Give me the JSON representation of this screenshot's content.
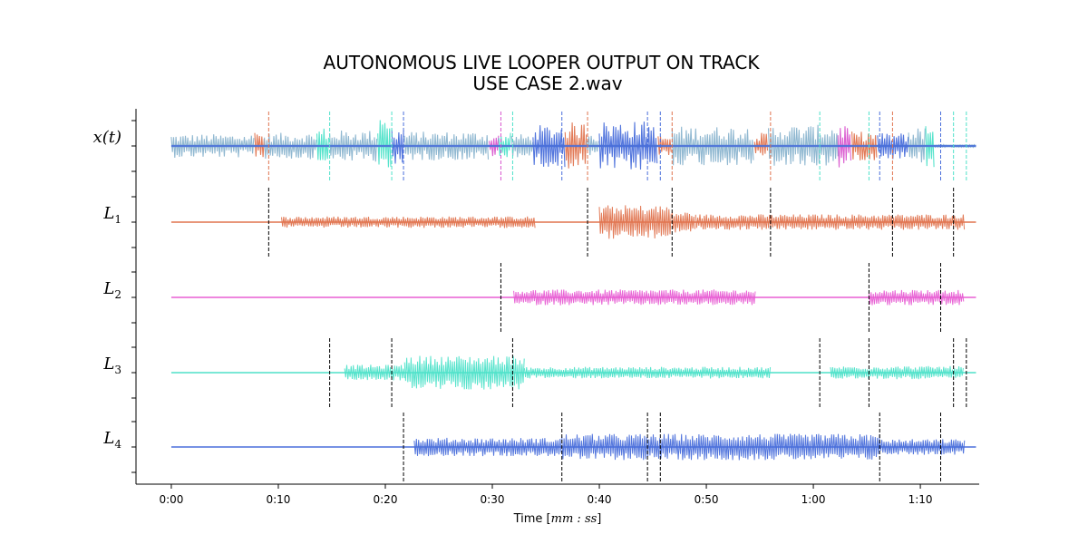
{
  "chart_data": {
    "type": "line",
    "title_line1": "AUTONOMOUS LIVE LOOPER OUTPUT ON TRACK",
    "title_line2": "USE CASE 2.wav",
    "xlabel_prefix": "Time [",
    "xlabel_math": "mm : ss",
    "xlabel_suffix": "]",
    "xlim": [
      -3.3,
      75.5
    ],
    "duration": 75.2,
    "x_ticks": [
      {
        "value": 0,
        "label": "0:00"
      },
      {
        "value": 10,
        "label": "0:10"
      },
      {
        "value": 20,
        "label": "0:20"
      },
      {
        "value": 30,
        "label": "0:30"
      },
      {
        "value": 40,
        "label": "0:40"
      },
      {
        "value": 50,
        "label": "0:50"
      },
      {
        "value": 60,
        "label": "1:00"
      },
      {
        "value": 70,
        "label": "1:10"
      }
    ],
    "tracks": [
      {
        "label": "x(t)",
        "label_main": "x",
        "label_sub": "",
        "label_suffix": "(t)",
        "color": "#8ab4cf",
        "kind": "input",
        "segments": [
          {
            "start": 0.0,
            "end": 7.8,
            "amp": 0.45,
            "color": "#8ab4cf"
          },
          {
            "start": 7.8,
            "end": 8.7,
            "amp": 0.55,
            "color": "#e0744f"
          },
          {
            "start": 8.7,
            "end": 13.6,
            "amp": 0.5,
            "color": "#8ab4cf"
          },
          {
            "start": 13.6,
            "end": 14.8,
            "amp": 0.7,
            "color": "#4ee1c9"
          },
          {
            "start": 14.8,
            "end": 19.3,
            "amp": 0.6,
            "color": "#8ab4cf"
          },
          {
            "start": 19.3,
            "end": 20.6,
            "amp": 1.0,
            "color": "#4ee1c9"
          },
          {
            "start": 20.6,
            "end": 21.8,
            "amp": 0.8,
            "color": "#4a6fdb"
          },
          {
            "start": 21.8,
            "end": 29.7,
            "amp": 0.55,
            "color": "#8ab4cf"
          },
          {
            "start": 29.7,
            "end": 30.6,
            "amp": 0.45,
            "color": "#d957cf"
          },
          {
            "start": 30.6,
            "end": 31.8,
            "amp": 0.5,
            "color": "#4ee1c9"
          },
          {
            "start": 31.8,
            "end": 33.8,
            "amp": 0.45,
            "color": "#8ab4cf"
          },
          {
            "start": 33.8,
            "end": 36.8,
            "amp": 0.8,
            "color": "#4a6fdb"
          },
          {
            "start": 36.8,
            "end": 38.8,
            "amp": 0.9,
            "color": "#e0744f"
          },
          {
            "start": 38.8,
            "end": 40.0,
            "amp": 0.5,
            "color": "#8ab4cf"
          },
          {
            "start": 40.0,
            "end": 45.5,
            "amp": 0.95,
            "color": "#4a6fdb"
          },
          {
            "start": 45.5,
            "end": 46.8,
            "amp": 0.4,
            "color": "#e0744f"
          },
          {
            "start": 46.8,
            "end": 54.5,
            "amp": 0.75,
            "color": "#8ab4cf"
          },
          {
            "start": 54.5,
            "end": 55.8,
            "amp": 0.5,
            "color": "#e0744f"
          },
          {
            "start": 55.8,
            "end": 62.3,
            "amp": 0.8,
            "color": "#8ab4cf"
          },
          {
            "start": 62.3,
            "end": 63.6,
            "amp": 0.85,
            "color": "#d957cf"
          },
          {
            "start": 63.6,
            "end": 66.0,
            "amp": 0.55,
            "color": "#e0744f"
          },
          {
            "start": 66.0,
            "end": 68.9,
            "amp": 0.5,
            "color": "#4a6fdb"
          },
          {
            "start": 68.9,
            "end": 70.5,
            "amp": 0.7,
            "color": "#8ab4cf"
          },
          {
            "start": 70.5,
            "end": 71.3,
            "amp": 0.9,
            "color": "#4ee1c9"
          },
          {
            "start": 71.3,
            "end": 75.2,
            "amp": 0.05,
            "color": "#8ab4cf"
          }
        ],
        "markers": [
          {
            "t": 9.1,
            "color": "#e0744f"
          },
          {
            "t": 14.8,
            "color": "#4ee1c9"
          },
          {
            "t": 20.6,
            "color": "#4ee1c9"
          },
          {
            "t": 21.7,
            "color": "#4a6fdb"
          },
          {
            "t": 30.8,
            "color": "#d957cf"
          },
          {
            "t": 31.9,
            "color": "#4ee1c9"
          },
          {
            "t": 36.5,
            "color": "#4a6fdb"
          },
          {
            "t": 38.9,
            "color": "#e0744f"
          },
          {
            "t": 44.5,
            "color": "#4a6fdb"
          },
          {
            "t": 45.7,
            "color": "#4a6fdb"
          },
          {
            "t": 46.8,
            "color": "#e0744f"
          },
          {
            "t": 56.0,
            "color": "#e0744f"
          },
          {
            "t": 60.6,
            "color": "#4ee1c9"
          },
          {
            "t": 65.2,
            "color": "#4ee1c9"
          },
          {
            "t": 66.2,
            "color": "#4a6fdb"
          },
          {
            "t": 67.4,
            "color": "#e0744f"
          },
          {
            "t": 71.9,
            "color": "#4a6fdb"
          },
          {
            "t": 73.1,
            "color": "#4ee1c9"
          },
          {
            "t": 74.3,
            "color": "#4ee1c9"
          }
        ]
      },
      {
        "label": "L1",
        "label_main": "L",
        "label_sub": "1",
        "label_suffix": "",
        "color": "#e0744f",
        "kind": "loop",
        "segments": [
          {
            "start": 10.3,
            "end": 34.0,
            "amp": 0.22
          },
          {
            "start": 40.0,
            "end": 46.8,
            "amp": 0.65
          },
          {
            "start": 46.8,
            "end": 49.0,
            "amp": 0.4
          },
          {
            "start": 49.0,
            "end": 74.2,
            "amp": 0.3
          }
        ],
        "markers": [
          9.1,
          38.9,
          46.8,
          56.0,
          67.4,
          73.1
        ]
      },
      {
        "label": "L2",
        "label_main": "L",
        "label_sub": "2",
        "label_suffix": "",
        "color": "#e85fd4",
        "kind": "loop",
        "segments": [
          {
            "start": 32.0,
            "end": 54.6,
            "amp": 0.3
          },
          {
            "start": 65.2,
            "end": 74.1,
            "amp": 0.3
          }
        ],
        "markers": [
          30.8,
          65.2,
          71.9
        ]
      },
      {
        "label": "L3",
        "label_main": "L",
        "label_sub": "3",
        "label_suffix": "",
        "color": "#4ee1c9",
        "kind": "loop",
        "segments": [
          {
            "start": 16.2,
            "end": 21.8,
            "amp": 0.3
          },
          {
            "start": 21.8,
            "end": 33.0,
            "amp": 0.65
          },
          {
            "start": 33.0,
            "end": 56.0,
            "amp": 0.22
          },
          {
            "start": 61.6,
            "end": 74.1,
            "amp": 0.25
          }
        ],
        "markers": [
          14.8,
          20.6,
          31.9,
          60.6,
          65.2,
          73.1,
          74.3
        ]
      },
      {
        "label": "L4",
        "label_main": "L",
        "label_sub": "4",
        "label_suffix": "",
        "color": "#4a6fdb",
        "kind": "loop",
        "segments": [
          {
            "start": 22.7,
            "end": 36.5,
            "amp": 0.35
          },
          {
            "start": 36.5,
            "end": 66.2,
            "amp": 0.5
          },
          {
            "start": 66.2,
            "end": 74.2,
            "amp": 0.3
          }
        ],
        "markers": [
          21.7,
          36.5,
          44.5,
          45.7,
          66.2,
          71.9
        ]
      }
    ],
    "grid": false,
    "legend": "none"
  }
}
